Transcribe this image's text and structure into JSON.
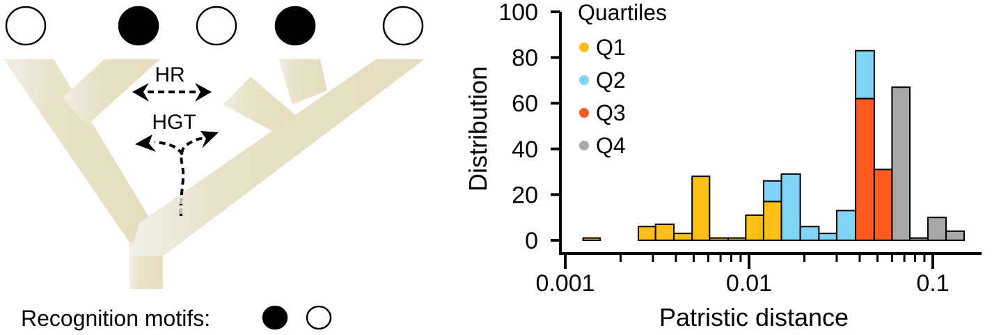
{
  "diagram": {
    "top_tips": [
      "open",
      "filled",
      "open",
      "filled",
      "open"
    ],
    "hr_label": "HR",
    "hgt_label": "HGT",
    "motifs_caption": "Recognition motifs:",
    "motif_symbols": [
      "filled",
      "open"
    ],
    "colors": {
      "branch_light": "#f0f0ea",
      "branch": "#e7dfc3",
      "arrow": "#000000"
    }
  },
  "chart_data": {
    "type": "bar",
    "xscale": "log",
    "xlabel": "Patristic distance",
    "ylabel": "Distribution",
    "xlim": [
      0.001,
      0.18
    ],
    "ylim": [
      0,
      100
    ],
    "x_ticks": [
      {
        "value": 0.001,
        "label": "0.001"
      },
      {
        "value": 0.01,
        "label": "0.01"
      },
      {
        "value": 0.1,
        "label": "0.1"
      }
    ],
    "y_ticks": [
      {
        "value": 0,
        "label": "0"
      },
      {
        "value": 20,
        "label": "20"
      },
      {
        "value": 40,
        "label": "40"
      },
      {
        "value": 60,
        "label": "60"
      },
      {
        "value": 80,
        "label": "80"
      },
      {
        "value": 100,
        "label": "100"
      }
    ],
    "legend": {
      "title": "Quartiles",
      "placement": "top-left"
    },
    "series": [
      {
        "name": "Q1",
        "color": "#fdbf16",
        "bars": [
          {
            "x0": 0.00125,
            "x1": 0.00155,
            "y0": 0,
            "y1": 1
          },
          {
            "x0": 0.0025,
            "x1": 0.0031,
            "y0": 0,
            "y1": 6
          },
          {
            "x0": 0.0031,
            "x1": 0.0039,
            "y0": 0,
            "y1": 7
          },
          {
            "x0": 0.0039,
            "x1": 0.0049,
            "y0": 0,
            "y1": 3
          },
          {
            "x0": 0.0049,
            "x1": 0.0061,
            "y0": 0,
            "y1": 28
          },
          {
            "x0": 0.0061,
            "x1": 0.0077,
            "y0": 0,
            "y1": 1
          },
          {
            "x0": 0.0077,
            "x1": 0.0096,
            "y0": 0,
            "y1": 1
          },
          {
            "x0": 0.0096,
            "x1": 0.012,
            "y0": 0,
            "y1": 11
          },
          {
            "x0": 0.012,
            "x1": 0.015,
            "y0": 0,
            "y1": 17
          }
        ]
      },
      {
        "name": "Q2",
        "color": "#7fd4f5",
        "bars": [
          {
            "x0": 0.012,
            "x1": 0.015,
            "y0": 17,
            "y1": 26
          },
          {
            "x0": 0.015,
            "x1": 0.019,
            "y0": 0,
            "y1": 29
          },
          {
            "x0": 0.019,
            "x1": 0.024,
            "y0": 0,
            "y1": 6
          },
          {
            "x0": 0.024,
            "x1": 0.03,
            "y0": 0,
            "y1": 3
          },
          {
            "x0": 0.03,
            "x1": 0.038,
            "y0": 0,
            "y1": 13
          },
          {
            "x0": 0.038,
            "x1": 0.048,
            "y0": 62,
            "y1": 83
          }
        ]
      },
      {
        "name": "Q3",
        "color": "#ff5a1f",
        "bars": [
          {
            "x0": 0.038,
            "x1": 0.048,
            "y0": 0,
            "y1": 62
          },
          {
            "x0": 0.048,
            "x1": 0.06,
            "y0": 0,
            "y1": 31
          }
        ]
      },
      {
        "name": "Q4",
        "color": "#a9a9a9",
        "bars": [
          {
            "x0": 0.06,
            "x1": 0.075,
            "y0": 0,
            "y1": 67
          },
          {
            "x0": 0.075,
            "x1": 0.094,
            "y0": 0,
            "y1": 1
          },
          {
            "x0": 0.094,
            "x1": 0.118,
            "y0": 0,
            "y1": 10
          },
          {
            "x0": 0.118,
            "x1": 0.148,
            "y0": 0,
            "y1": 4
          }
        ]
      }
    ]
  }
}
